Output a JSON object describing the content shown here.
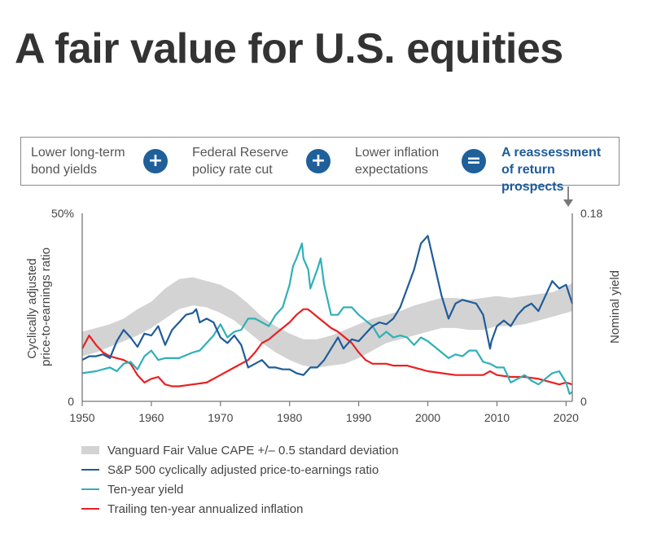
{
  "title": "A fair value for U.S. equities",
  "banner": {
    "steps": [
      {
        "text": "Lower long-term\nbond yields",
        "operator_after": "+"
      },
      {
        "text": "Federal Reserve\npolicy rate cut",
        "operator_after": "+"
      },
      {
        "text": "Lower inflation\nexpectations",
        "operator_after": "="
      },
      {
        "text": "A reassessment\nof return prospects",
        "operator_after": null
      }
    ],
    "operator_color": "#1f5f9a",
    "result_color": "#1f5c99"
  },
  "chart_data": {
    "type": "line",
    "title": "",
    "xlabel": "",
    "ylabel": "Cyclically adjusted\nprice-to-earnings ratio",
    "ylabel_right": "Nominal yield",
    "xlim": [
      1950,
      2020.9
    ],
    "ylim": [
      0,
      50
    ],
    "ylim_right": [
      0,
      0.18
    ],
    "x_ticks": [
      1950,
      1960,
      1970,
      1980,
      1990,
      2000,
      2010,
      2020
    ],
    "y_ticks_left": [
      {
        "value": 0,
        "label": "0"
      },
      {
        "value": 50,
        "label": "50%"
      }
    ],
    "y_ticks_right": [
      {
        "value": 0,
        "label": "0"
      },
      {
        "value": 0.18,
        "label": "0.18"
      }
    ],
    "grid": false,
    "legend_position": "bottom",
    "band": {
      "name": "Vanguard Fair Value CAPE +/– 0.5 standard deviation",
      "color": "#d3d3d3",
      "x": [
        1950,
        1952,
        1954,
        1956,
        1958,
        1960,
        1962,
        1964,
        1966,
        1968,
        1970,
        1972,
        1974,
        1976,
        1978,
        1980,
        1982,
        1984,
        1986,
        1988,
        1990,
        1992,
        1994,
        1996,
        1998,
        2000,
        2002,
        2004,
        2006,
        2008,
        2010,
        2012,
        2014,
        2016,
        2018,
        2020,
        2020.9
      ],
      "upper": [
        18.5,
        19.5,
        20.5,
        22,
        24.5,
        26.5,
        30,
        32.5,
        33,
        32,
        31,
        29,
        26,
        22.5,
        20,
        18,
        16.5,
        16.5,
        17.5,
        19,
        20.5,
        22,
        23,
        24,
        25.5,
        26.5,
        27.5,
        27.5,
        27,
        27.5,
        28,
        27.5,
        28,
        28.5,
        29,
        30.5,
        31.5
      ],
      "lower": [
        12,
        13,
        14.5,
        16,
        17.5,
        19.5,
        22,
        24.5,
        25.5,
        25,
        23.5,
        21.5,
        18.5,
        15.5,
        13,
        11,
        9.5,
        9,
        9.5,
        10,
        11.5,
        13.5,
        15.5,
        16.5,
        17.5,
        18.5,
        19.5,
        19.5,
        19,
        19,
        20,
        20,
        20.5,
        21.5,
        22.5,
        23.5,
        24
      ]
    },
    "series": [
      {
        "name": "S&P 500 cyclically adjusted price-to-earnings ratio",
        "color": "#1f5c99",
        "x": [
          1950,
          1951,
          1952,
          1953,
          1954,
          1955,
          1956,
          1957,
          1958,
          1959,
          1960,
          1961,
          1962,
          1963,
          1964,
          1965,
          1966,
          1966.5,
          1967,
          1968,
          1969,
          1970,
          1971,
          1972,
          1973,
          1974,
          1975,
          1976,
          1977,
          1978,
          1979,
          1980,
          1981,
          1982,
          1983,
          1984,
          1985,
          1986,
          1987,
          1987.8,
          1988,
          1989,
          1990,
          1991,
          1992,
          1993,
          1994,
          1995,
          1996,
          1997,
          1998,
          1999,
          2000,
          2001,
          2002,
          2003,
          2004,
          2005,
          2006,
          2007,
          2008,
          2009,
          2009.2,
          2010,
          2011,
          2012,
          2013,
          2014,
          2015,
          2016,
          2017,
          2018,
          2019,
          2020,
          2020.9
        ],
        "values": [
          11,
          12,
          12,
          12.5,
          11.5,
          16,
          19,
          17,
          14.5,
          18,
          17.5,
          20,
          15,
          19,
          21,
          23,
          23.5,
          24.5,
          21,
          22,
          21,
          17,
          15.5,
          17.5,
          15,
          9,
          10,
          11,
          9,
          9,
          8.5,
          8.5,
          7.5,
          7,
          9,
          9,
          11,
          14,
          17,
          14,
          14.5,
          16.5,
          16,
          18,
          20,
          21,
          20.5,
          22,
          25,
          30,
          35,
          42,
          44,
          36,
          28,
          22,
          26,
          27,
          26.5,
          26,
          23,
          14,
          16,
          20,
          21.5,
          20,
          23,
          25,
          26,
          24,
          28,
          32,
          30,
          31,
          26
        ]
      },
      {
        "name": "Ten-year yield",
        "color": "#30b0b8",
        "x": [
          1950,
          1952,
          1954,
          1955,
          1956,
          1957,
          1958,
          1959,
          1960,
          1961,
          1962,
          1964,
          1966,
          1967,
          1968,
          1969,
          1970,
          1971,
          1972,
          1973,
          1974,
          1975,
          1976,
          1977,
          1978,
          1979,
          1980,
          1980.5,
          1981,
          1981.8,
          1982,
          1982.7,
          1983,
          1984,
          1984.5,
          1985,
          1986,
          1987,
          1987.8,
          1988,
          1989,
          1990,
          1991,
          1992,
          1993,
          1994,
          1995,
          1996,
          1997,
          1998,
          1999,
          2000,
          2001,
          2002,
          2003,
          2004,
          2005,
          2006,
          2007,
          2008,
          2009,
          2010,
          2011,
          2012,
          2013,
          2014,
          2015,
          2016,
          2017,
          2018,
          2019,
          2020,
          2020.5,
          2020.9
        ],
        "values": [
          7.5,
          8,
          9,
          8,
          10,
          10.5,
          8.5,
          12,
          13.5,
          11,
          11.5,
          11.5,
          13,
          13.5,
          15.5,
          17.5,
          20.5,
          17,
          18.5,
          19,
          22,
          22,
          21,
          20,
          23,
          25,
          31,
          36,
          38,
          42,
          38,
          35,
          30,
          35,
          38,
          31,
          23,
          23,
          25,
          25,
          25,
          23,
          21.5,
          20,
          17,
          18.5,
          17,
          17.5,
          17,
          15,
          17,
          16,
          14.5,
          13,
          11.5,
          12.5,
          12,
          13.5,
          13.5,
          10.5,
          10,
          9,
          9,
          5,
          6,
          7,
          5.5,
          4.5,
          6,
          7.5,
          8,
          5,
          2,
          2.5
        ]
      },
      {
        "name": "Trailing ten-year annualized inflation",
        "color": "#ea2020",
        "x": [
          1950,
          1951,
          1952,
          1953,
          1954,
          1955,
          1956,
          1957,
          1958,
          1959,
          1960,
          1961,
          1962,
          1963,
          1964,
          1966,
          1968,
          1970,
          1972,
          1974,
          1975,
          1976,
          1977,
          1978,
          1979,
          1980,
          1981,
          1982,
          1982.6,
          1983,
          1984,
          1985,
          1986,
          1987,
          1988,
          1989,
          1990,
          1991,
          1992,
          1993,
          1994,
          1995,
          1996,
          1997,
          1998,
          1999,
          2000,
          2002,
          2004,
          2006,
          2008,
          2009,
          2010,
          2012,
          2014,
          2016,
          2018,
          2019,
          2020,
          2020.9
        ],
        "values": [
          14,
          17.5,
          15,
          13,
          12,
          11.5,
          11,
          10,
          7,
          5,
          6,
          6.5,
          4.5,
          4,
          4,
          4.5,
          5,
          7,
          9,
          11,
          13,
          15.5,
          16.5,
          18,
          19.5,
          21,
          23,
          24.5,
          24.5,
          24,
          22.5,
          21,
          19.5,
          18.5,
          17,
          15.5,
          13,
          11,
          10,
          10,
          10,
          9.5,
          9.5,
          9.5,
          9,
          8.5,
          8,
          7.5,
          7,
          7,
          7,
          8,
          7,
          6.5,
          6.5,
          6,
          5,
          4.5,
          5,
          4.5
        ]
      }
    ]
  }
}
